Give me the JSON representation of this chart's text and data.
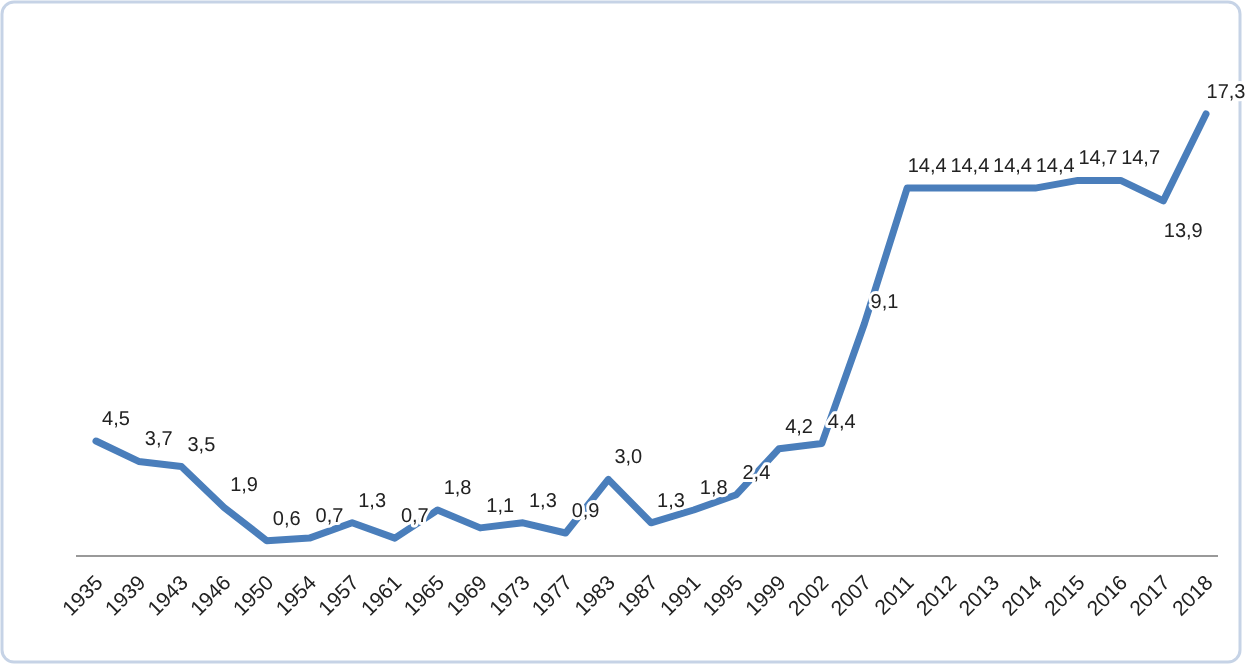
{
  "chart_data": {
    "type": "line",
    "categories": [
      "1935",
      "1939",
      "1943",
      "1946",
      "1950",
      "1954",
      "1957",
      "1961",
      "1965",
      "1969",
      "1973",
      "1977",
      "1983",
      "1987",
      "1991",
      "1995",
      "1999",
      "2002",
      "2007",
      "2011",
      "2012",
      "2013",
      "2014",
      "2015",
      "2016",
      "2017",
      "2018"
    ],
    "series": [
      {
        "color": "#4a7ebb",
        "values": [
          4.5,
          3.7,
          3.5,
          1.9,
          0.6,
          0.7,
          1.3,
          0.7,
          1.8,
          1.1,
          1.3,
          0.9,
          3.0,
          1.3,
          1.8,
          2.4,
          4.2,
          4.4,
          9.1,
          14.4,
          14.4,
          14.4,
          14.4,
          14.7,
          14.7,
          13.9,
          17.3
        ],
        "value_labels": [
          "4,5",
          "3,7",
          "3,5",
          "1,9",
          "0,6",
          "0,7",
          "1,3",
          "0,7",
          "1,8",
          "1,1",
          "1,3",
          "0,9",
          "3,0",
          "1,3",
          "1,8",
          "2,4",
          "4,2",
          "4,4",
          "9,1",
          "14,4",
          "14,4",
          "14,4",
          "14,4",
          "14,7",
          "14,7",
          "13,9",
          "17,3"
        ]
      }
    ],
    "marker": "none",
    "line_style": "solid"
  }
}
